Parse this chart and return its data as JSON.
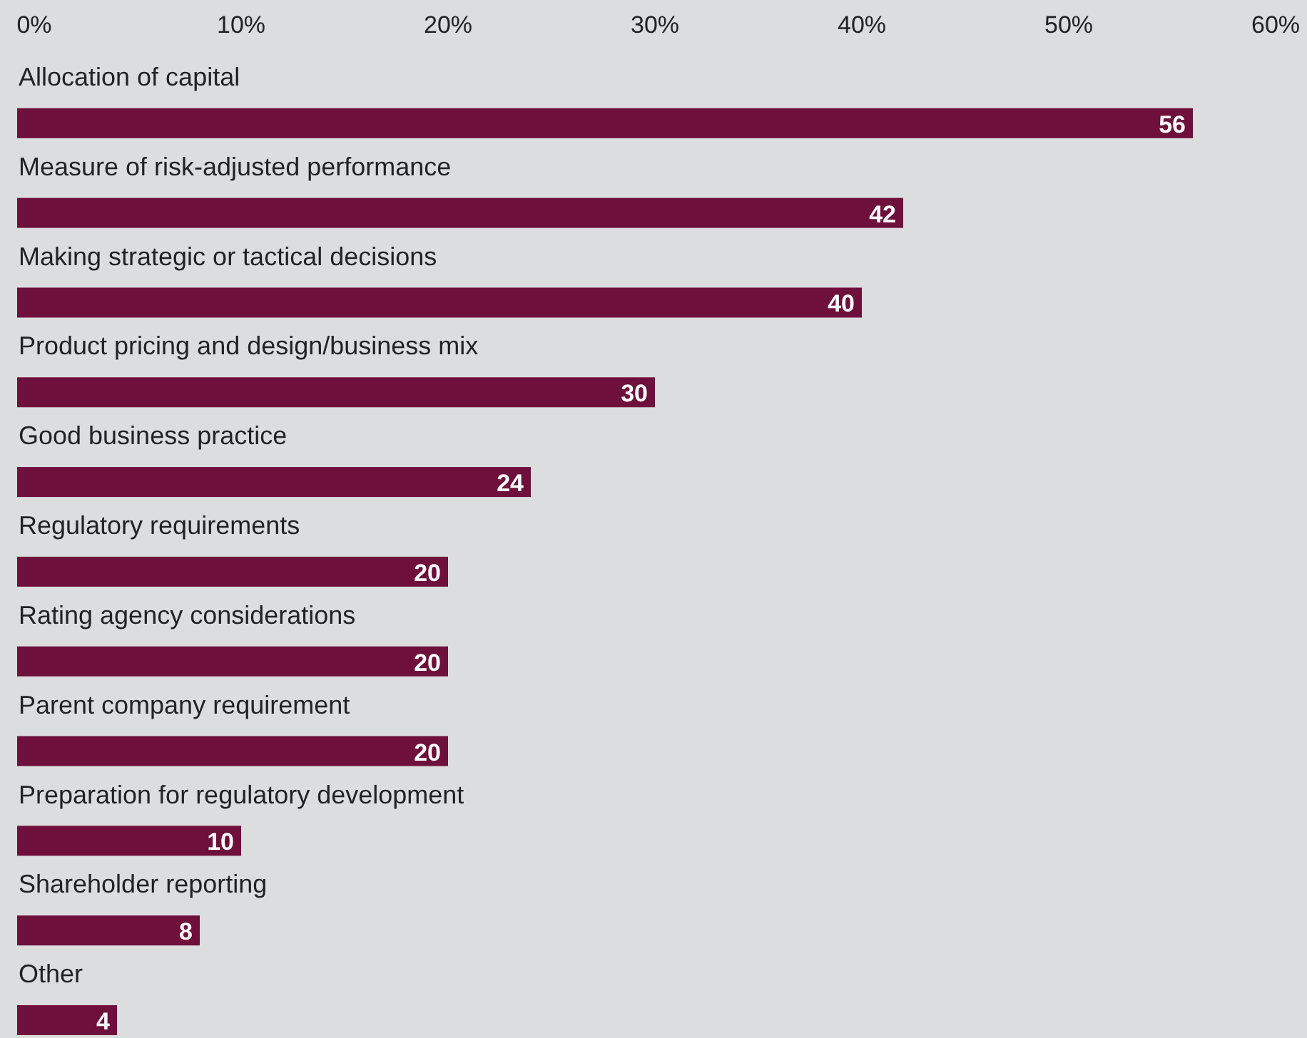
{
  "chart_data": {
    "type": "bar",
    "orientation": "horizontal",
    "categories": [
      "Allocation of capital",
      "Measure of risk-adjusted performance",
      "Making strategic or tactical decisions",
      "Product pricing and design/business mix",
      "Good business practice",
      "Regulatory requirements",
      "Rating agency considerations",
      "Parent company requirement",
      "Preparation for regulatory development",
      "Shareholder reporting",
      "Other"
    ],
    "values": [
      56,
      42,
      40,
      30,
      24,
      20,
      20,
      20,
      10,
      8,
      4
    ],
    "color": "#6e0f3c",
    "xlim": [
      0,
      60
    ],
    "xticks": [
      {
        "value": 0,
        "label": "0%"
      },
      {
        "value": 10,
        "label": "10%"
      },
      {
        "value": 20,
        "label": "20%"
      },
      {
        "value": 30,
        "label": "30%"
      },
      {
        "value": 40,
        "label": "40%"
      },
      {
        "value": 50,
        "label": "50%"
      },
      {
        "value": 60,
        "label": "60%"
      }
    ],
    "data_labels": true
  }
}
